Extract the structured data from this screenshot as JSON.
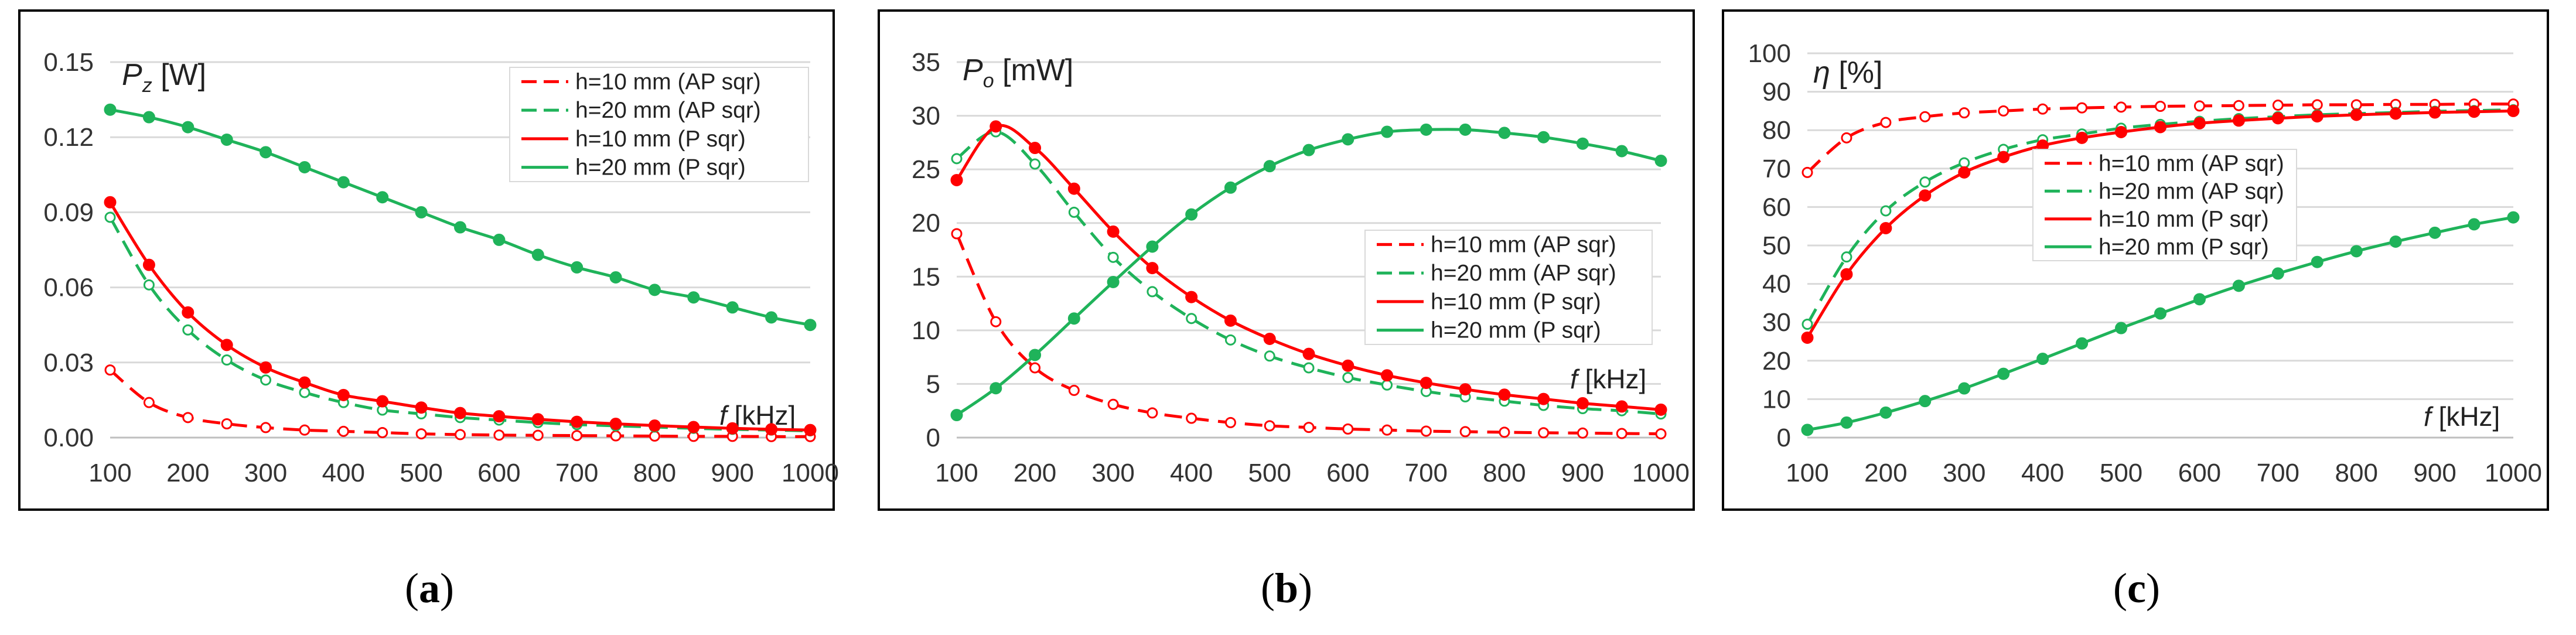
{
  "colors": {
    "red": "#ff0000",
    "green": "#1fb35a",
    "grid": "#d9d9d9",
    "frame": "#000000"
  },
  "legend_labels": [
    "h=10 mm (AP sqr)",
    "h=20 mm (AP sqr)",
    "h=10 mm (P sqr)",
    "h=20 mm (P sqr)"
  ],
  "chart_data": [
    {
      "id": "a",
      "type": "line",
      "caption": "(a)",
      "ylabel_symbol": "P",
      "ylabel_sub": "z",
      "ylabel_unit": " [W]",
      "xlabel_symbol": "f",
      "xlabel_unit": " [kHz]",
      "legend_position": "top-right",
      "grid": true,
      "x": [
        100,
        150,
        200,
        250,
        300,
        350,
        400,
        450,
        500,
        550,
        600,
        650,
        700,
        750,
        800,
        850,
        900,
        950,
        1000
      ],
      "xticks": [
        "100",
        "200",
        "300",
        "400",
        "500",
        "600",
        "700",
        "800",
        "900",
        "1000"
      ],
      "xlim": [
        100,
        1000
      ],
      "ylim": [
        0,
        0.15
      ],
      "yticks": [
        "0.00",
        "0.03",
        "0.06",
        "0.09",
        "0.12",
        "0.15"
      ],
      "series": [
        {
          "name": "h=10 mm (AP sqr)",
          "color": "red",
          "dash": true,
          "marker": "open",
          "values": [
            0.027,
            0.014,
            0.008,
            0.0055,
            0.004,
            0.003,
            0.0025,
            0.002,
            0.0015,
            0.0012,
            0.001,
            0.0009,
            0.0008,
            0.0007,
            0.0006,
            0.0005,
            0.0005,
            0.0004,
            0.0004
          ]
        },
        {
          "name": "h=20 mm (AP sqr)",
          "color": "green",
          "dash": true,
          "marker": "open",
          "values": [
            0.088,
            0.061,
            0.043,
            0.031,
            0.023,
            0.018,
            0.014,
            0.011,
            0.0095,
            0.008,
            0.007,
            0.006,
            0.0052,
            0.0047,
            0.0042,
            0.0037,
            0.0033,
            0.003,
            0.0027
          ]
        },
        {
          "name": "h=10 mm (P sqr)",
          "color": "red",
          "dash": false,
          "marker": "filled",
          "values": [
            0.094,
            0.069,
            0.05,
            0.037,
            0.028,
            0.022,
            0.017,
            0.0145,
            0.012,
            0.0098,
            0.0085,
            0.0073,
            0.0063,
            0.0055,
            0.0048,
            0.0042,
            0.0037,
            0.0033,
            0.003
          ]
        },
        {
          "name": "h=20 mm (P sqr)",
          "color": "green",
          "dash": false,
          "marker": "filled",
          "values": [
            0.131,
            0.128,
            0.124,
            0.119,
            0.114,
            0.108,
            0.102,
            0.096,
            0.09,
            0.084,
            0.079,
            0.073,
            0.068,
            0.064,
            0.059,
            0.056,
            0.052,
            0.048,
            0.045
          ]
        }
      ]
    },
    {
      "id": "b",
      "type": "line",
      "caption": "(b)",
      "ylabel_symbol": "P",
      "ylabel_sub": "o",
      "ylabel_unit": " [mW]",
      "xlabel_symbol": "f",
      "xlabel_unit": " [kHz]",
      "legend_position": "middle-right",
      "grid": true,
      "x": [
        100,
        150,
        200,
        250,
        300,
        350,
        400,
        450,
        500,
        550,
        600,
        650,
        700,
        750,
        800,
        850,
        900,
        950,
        1000
      ],
      "xticks": [
        "100",
        "200",
        "300",
        "400",
        "500",
        "600",
        "700",
        "800",
        "900",
        "1000"
      ],
      "xlim": [
        100,
        1000
      ],
      "ylim": [
        0,
        35
      ],
      "yticks": [
        "0",
        "5",
        "10",
        "15",
        "20",
        "25",
        "30",
        "35"
      ],
      "series": [
        {
          "name": "h=10 mm (AP sqr)",
          "color": "red",
          "dash": true,
          "marker": "open",
          "values": [
            19,
            10.8,
            6.5,
            4.4,
            3.1,
            2.3,
            1.8,
            1.4,
            1.1,
            0.95,
            0.8,
            0.7,
            0.6,
            0.55,
            0.5,
            0.45,
            0.42,
            0.38,
            0.35
          ]
        },
        {
          "name": "h=20 mm (AP sqr)",
          "color": "green",
          "dash": true,
          "marker": "open",
          "values": [
            26,
            28.5,
            25.5,
            21,
            16.8,
            13.6,
            11.1,
            9.1,
            7.6,
            6.5,
            5.6,
            4.9,
            4.3,
            3.8,
            3.4,
            3.0,
            2.7,
            2.5,
            2.2
          ]
        },
        {
          "name": "h=10 mm (P sqr)",
          "color": "red",
          "dash": false,
          "marker": "filled",
          "values": [
            24,
            29,
            27,
            23.2,
            19.2,
            15.8,
            13.1,
            10.9,
            9.2,
            7.8,
            6.7,
            5.8,
            5.1,
            4.5,
            4.0,
            3.6,
            3.2,
            2.9,
            2.6
          ]
        },
        {
          "name": "h=20 mm (P sqr)",
          "color": "green",
          "dash": false,
          "marker": "filled",
          "values": [
            2.1,
            4.6,
            7.7,
            11.1,
            14.5,
            17.8,
            20.8,
            23.3,
            25.3,
            26.8,
            27.8,
            28.5,
            28.7,
            28.7,
            28.4,
            28.0,
            27.4,
            26.7,
            25.8
          ]
        }
      ]
    },
    {
      "id": "c",
      "type": "line",
      "caption": "(c)",
      "ylabel_symbol": "η",
      "ylabel_sub": "",
      "ylabel_unit": " [%]",
      "xlabel_symbol": "f",
      "xlabel_unit": " [kHz]",
      "legend_position": "middle-left",
      "grid": true,
      "x": [
        100,
        150,
        200,
        250,
        300,
        350,
        400,
        450,
        500,
        550,
        600,
        650,
        700,
        750,
        800,
        850,
        900,
        950,
        1000
      ],
      "xticks": [
        "100",
        "200",
        "300",
        "400",
        "500",
        "600",
        "700",
        "800",
        "900",
        "1000"
      ],
      "xlim": [
        100,
        1000
      ],
      "ylim": [
        0,
        100
      ],
      "yticks": [
        "0",
        "10",
        "20",
        "30",
        "40",
        "50",
        "60",
        "70",
        "80",
        "90",
        "100"
      ],
      "series": [
        {
          "name": "h=10 mm (AP sqr)",
          "color": "red",
          "dash": true,
          "marker": "open",
          "values": [
            69,
            78,
            82,
            83.5,
            84.5,
            85,
            85.5,
            85.8,
            86,
            86.2,
            86.3,
            86.4,
            86.5,
            86.6,
            86.6,
            86.7,
            86.7,
            86.8,
            86.8
          ]
        },
        {
          "name": "h=20 mm (AP sqr)",
          "color": "green",
          "dash": true,
          "marker": "open",
          "values": [
            29.5,
            47,
            59,
            66.5,
            71.5,
            75,
            77.5,
            79,
            80.5,
            81.5,
            82.3,
            83,
            83.5,
            84,
            84.3,
            84.6,
            84.9,
            85.1,
            85.3
          ]
        },
        {
          "name": "h=10 mm (P sqr)",
          "color": "red",
          "dash": false,
          "marker": "filled",
          "values": [
            26,
            42.5,
            54.5,
            63,
            69,
            73,
            76,
            78,
            79.5,
            80.8,
            81.8,
            82.5,
            83.1,
            83.6,
            84,
            84.3,
            84.6,
            84.8,
            85
          ]
        },
        {
          "name": "h=20 mm (P sqr)",
          "color": "green",
          "dash": false,
          "marker": "filled",
          "values": [
            2,
            3.9,
            6.5,
            9.5,
            12.8,
            16.6,
            20.5,
            24.5,
            28.5,
            32.3,
            36,
            39.5,
            42.7,
            45.7,
            48.5,
            51,
            53.3,
            55.5,
            57.3
          ]
        }
      ]
    }
  ]
}
